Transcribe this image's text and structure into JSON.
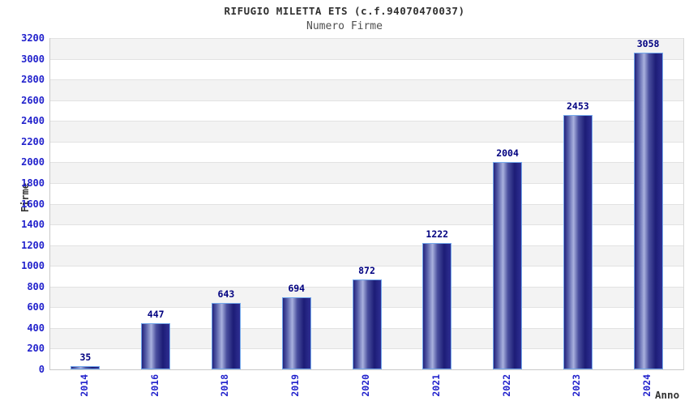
{
  "chart_data": {
    "type": "bar",
    "title": "RIFUGIO MILETTA ETS (c.f.94070470037)",
    "subtitle": "Numero Firme",
    "xlabel": "Anno",
    "ylabel": "Firme",
    "categories": [
      "2014",
      "2016",
      "2018",
      "2019",
      "2020",
      "2021",
      "2022",
      "2023",
      "2024"
    ],
    "values": [
      35,
      447,
      643,
      694,
      872,
      1222,
      2004,
      2453,
      3058
    ],
    "ylim": [
      0,
      3200
    ],
    "ytick_step": 200,
    "grid": "horizontal-bands-alternating",
    "legend": "none",
    "colors": {
      "tick_label": "#2222cc",
      "value_label": "#000080",
      "bar_dark": "#1d1d77",
      "bar_highlight": "#a9b1de",
      "bar_border": "#74a9ec",
      "band_white": "#ffffff",
      "band_gray": "#f3f3f3",
      "gridline": "#e2e2e2",
      "title_text": "#303030",
      "subtitle_text": "#505050",
      "axis_label_text": "#333333"
    }
  }
}
